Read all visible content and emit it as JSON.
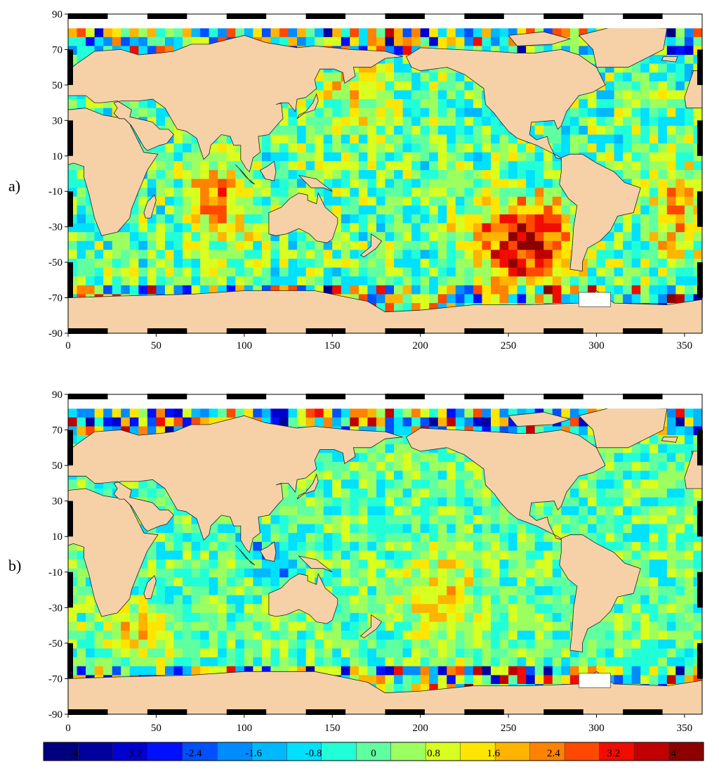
{
  "panels": [
    {
      "label": "a)",
      "xticks": [
        0,
        50,
        100,
        150,
        200,
        250,
        300,
        350
      ],
      "yticks": [
        90,
        70,
        50,
        30,
        10,
        -10,
        -30,
        -50,
        -70,
        -90
      ],
      "xlim": [
        0,
        360
      ],
      "ylim": [
        -90,
        90
      ],
      "pattern_seed": 7
    },
    {
      "label": "b)",
      "xticks": [
        0,
        50,
        100,
        150,
        200,
        250,
        300,
        350
      ],
      "yticks": [
        90,
        70,
        50,
        30,
        10,
        -10,
        -30,
        -50,
        -70,
        -90
      ],
      "xlim": [
        0,
        360
      ],
      "ylim": [
        -90,
        90
      ],
      "pattern_seed": 13
    }
  ],
  "colorbar": {
    "tick_labels": [
      "-4",
      "-3.2",
      "-2.4",
      "-1.6",
      "-0.8",
      "0",
      "0.8",
      "1.6",
      "2.4",
      "3.2",
      "4"
    ],
    "range": [
      -4.4,
      4.4
    ],
    "colors": [
      "#00007f",
      "#00009f",
      "#0000d0",
      "#0010ff",
      "#0050ff",
      "#008cff",
      "#00b8ff",
      "#00e0ff",
      "#20ffd8",
      "#60ffa0",
      "#9cff60",
      "#d8ff20",
      "#ffe600",
      "#ffb400",
      "#ff8200",
      "#ff4800",
      "#f00c00",
      "#c00000",
      "#8c0000"
    ]
  },
  "colors": {
    "land": "#f6d1a8",
    "coast": "#222222",
    "ice": "#ffffff"
  }
}
